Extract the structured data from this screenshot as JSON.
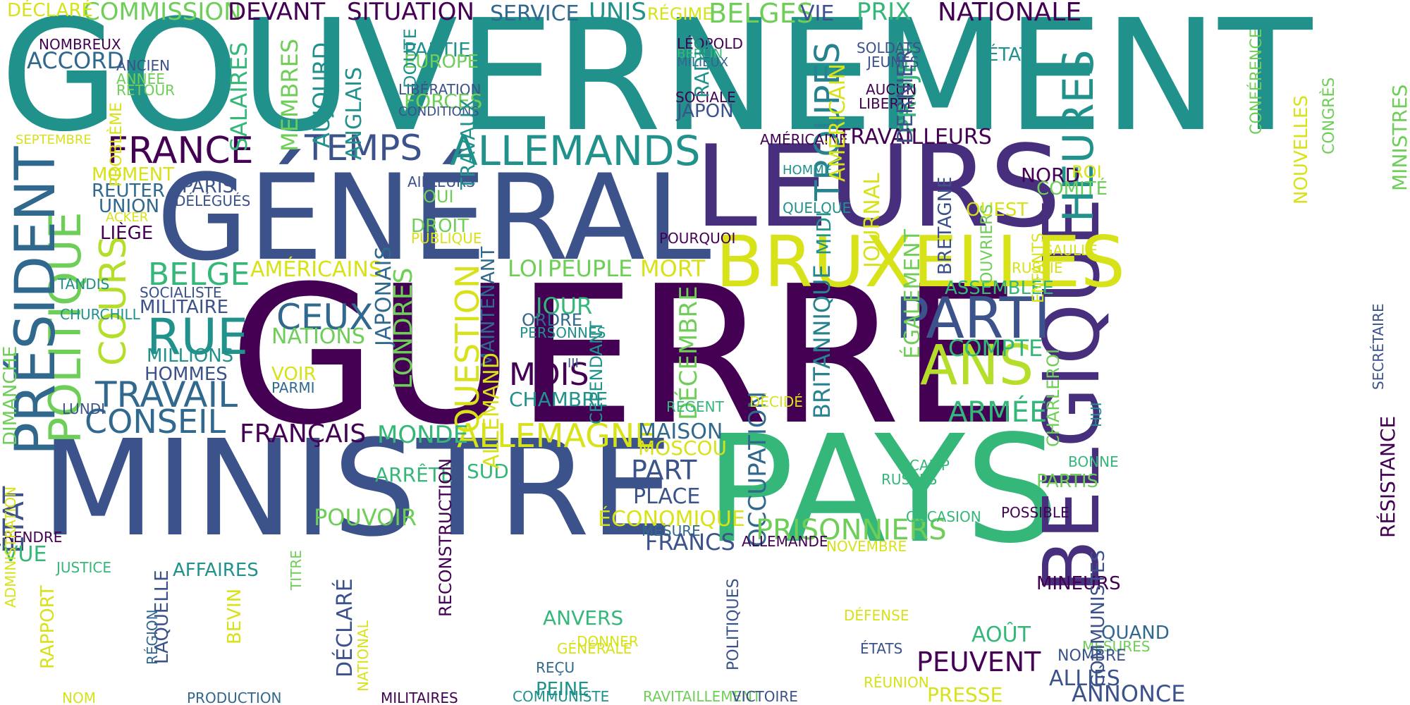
{
  "colors": {
    "purple": "#472f7d",
    "dark_purple": "#440154",
    "indigo": "#3b528b",
    "blue": "#31688e",
    "teal": "#21918c",
    "cyan_teal": "#26828e",
    "green": "#35b779",
    "light_green": "#6ece58",
    "lime": "#b5de2b",
    "yellow": "#d8e219"
  },
  "words": [
    {
      "text": "GOUVERNEMENT",
      "c": "teal"
    },
    {
      "text": "GÉNÉRAL",
      "c": "indigo"
    },
    {
      "text": "GUERRE",
      "c": "dark_purple"
    },
    {
      "text": "MINISTRE",
      "c": "indigo"
    },
    {
      "text": "LEURS",
      "c": "purple"
    },
    {
      "text": "PAYS",
      "c": "green"
    },
    {
      "text": "BELGIQUE",
      "c": "purple"
    },
    {
      "text": "BRUXELLES",
      "c": "yellow"
    },
    {
      "text": "PARTI",
      "c": "indigo"
    },
    {
      "text": "ANS",
      "c": "lime"
    },
    {
      "text": "POLITIQUE",
      "c": "light_green"
    },
    {
      "text": "PRÉSIDENT",
      "c": "blue"
    },
    {
      "text": "ALLEMANDS",
      "c": "teal"
    },
    {
      "text": "TEMPS",
      "c": "indigo"
    },
    {
      "text": "FRANCE",
      "c": "dark_purple"
    },
    {
      "text": "COURS",
      "c": "lime"
    },
    {
      "text": "RUE",
      "c": "teal"
    },
    {
      "text": "TRAVAIL",
      "c": "blue"
    },
    {
      "text": "CONSEIL",
      "c": "blue"
    },
    {
      "text": "BELGE",
      "c": "green"
    },
    {
      "text": "CEUX",
      "c": "blue"
    },
    {
      "text": "MOIS",
      "c": "dark_purple"
    },
    {
      "text": "QUESTION",
      "c": "yellow"
    },
    {
      "text": "LONDRES",
      "c": "light_green"
    },
    {
      "text": "ALLEMAGNE",
      "c": "yellow"
    },
    {
      "text": "FRANÇAIS",
      "c": "dark_purple"
    },
    {
      "text": "HEURES",
      "c": "teal"
    },
    {
      "text": "TROUPES",
      "c": "cyan_teal"
    },
    {
      "text": "PROJET",
      "c": "green"
    },
    {
      "text": "ÉTAT",
      "c": "indigo"
    },
    {
      "text": "ARMÉE",
      "c": "green"
    },
    {
      "text": "COMPTE",
      "c": "green"
    },
    {
      "text": "ASSEMBLÉE",
      "c": "green"
    },
    {
      "text": "OCCUPATION",
      "c": "blue"
    },
    {
      "text": "BRITANNIQUE",
      "c": "cyan_teal"
    },
    {
      "text": "DÉCEMBRE",
      "c": "light_green"
    },
    {
      "text": "CEPENDANT",
      "c": "teal"
    },
    {
      "text": "PRISONNIERS",
      "c": "light_green"
    },
    {
      "text": "FRANCS",
      "c": "indigo"
    },
    {
      "text": "MAISON",
      "c": "blue"
    },
    {
      "text": "MOSCOU",
      "c": "yellow"
    },
    {
      "text": "PART",
      "c": "indigo"
    },
    {
      "text": "PLACE",
      "c": "indigo"
    },
    {
      "text": "ÉCONOMIQUE",
      "c": "yellow"
    },
    {
      "text": "LOI",
      "c": "light_green"
    },
    {
      "text": "PEUPLE",
      "c": "light_green"
    },
    {
      "text": "MORT",
      "c": "yellow"
    },
    {
      "text": "AMÉRICAINS",
      "c": "yellow"
    },
    {
      "text": "MONDE",
      "c": "green"
    },
    {
      "text": "SUD",
      "c": "green"
    },
    {
      "text": "ARRÊTÉ",
      "c": "green"
    },
    {
      "text": "POUVOIR",
      "c": "light_green"
    },
    {
      "text": "JOUR",
      "c": "green"
    },
    {
      "text": "ORDRE",
      "c": "blue"
    },
    {
      "text": "NATIONS",
      "c": "light_green"
    },
    {
      "text": "CHAMBRE",
      "c": "teal"
    },
    {
      "text": "COMMISSION",
      "c": "light_green"
    },
    {
      "text": "DÉCLARÉ",
      "c": "yellow"
    },
    {
      "text": "DEVANT",
      "c": "dark_purple"
    },
    {
      "text": "SITUATION",
      "c": "dark_purple"
    },
    {
      "text": "SERVICE",
      "c": "blue"
    },
    {
      "text": "UNIS",
      "c": "teal"
    },
    {
      "text": "RÉGIME",
      "c": "yellow"
    },
    {
      "text": "BELGES",
      "c": "light_green"
    },
    {
      "text": "VIE",
      "c": "indigo"
    },
    {
      "text": "PRIX",
      "c": "green"
    },
    {
      "text": "NATIONALE",
      "c": "dark_purple"
    },
    {
      "text": "NOMBREUX",
      "c": "dark_purple"
    },
    {
      "text": "ACCORD",
      "c": "blue"
    },
    {
      "text": "ANCIEN",
      "c": "indigo"
    },
    {
      "text": "ANNÉE",
      "c": "light_green"
    },
    {
      "text": "RETOUR",
      "c": "light_green"
    },
    {
      "text": "PARTIE",
      "c": "teal"
    },
    {
      "text": "EUROPE",
      "c": "light_green"
    },
    {
      "text": "LIBÉRATION",
      "c": "indigo"
    },
    {
      "text": "FORCES",
      "c": "light_green"
    },
    {
      "text": "CONDITIONS",
      "c": "indigo"
    },
    {
      "text": "LÉOPOLD",
      "c": "dark_purple"
    },
    {
      "text": "BERLIN",
      "c": "green"
    },
    {
      "text": "MILIEUX",
      "c": "blue"
    },
    {
      "text": "SOCIALE",
      "c": "dark_purple"
    },
    {
      "text": "JAPON",
      "c": "indigo"
    },
    {
      "text": "SOLDATS",
      "c": "indigo"
    },
    {
      "text": "JEUNES",
      "c": "indigo"
    },
    {
      "text": "AUCUN",
      "c": "dark_purple"
    },
    {
      "text": "LIBERTÉ",
      "c": "dark_purple"
    },
    {
      "text": "ÉTAT",
      "c": "teal"
    },
    {
      "text": "SEPTEMBRE",
      "c": "yellow"
    },
    {
      "text": "MOMENT",
      "c": "yellow"
    },
    {
      "text": "REUTER",
      "c": "blue"
    },
    {
      "text": "UNION",
      "c": "blue"
    },
    {
      "text": "ACKER",
      "c": "yellow"
    },
    {
      "text": "LIÈGE",
      "c": "dark_purple"
    },
    {
      "text": "PARIS",
      "c": "indigo"
    },
    {
      "text": "DÉLÉGUÉS",
      "c": "indigo"
    },
    {
      "text": "AILLEURS",
      "c": "indigo"
    },
    {
      "text": "OUI",
      "c": "light_green"
    },
    {
      "text": "DROIT",
      "c": "light_green"
    },
    {
      "text": "PUBLIQUE",
      "c": "yellow"
    },
    {
      "text": "TRAVAILLEURS",
      "c": "dark_purple"
    },
    {
      "text": "AMÉRICAINE",
      "c": "dark_purple"
    },
    {
      "text": "HOMME",
      "c": "teal"
    },
    {
      "text": "QUELQUE",
      "c": "teal"
    },
    {
      "text": "NORD",
      "c": "dark_purple"
    },
    {
      "text": "ROI",
      "c": "yellow"
    },
    {
      "text": "COMITÉ",
      "c": "light_green"
    },
    {
      "text": "OUEST",
      "c": "yellow"
    },
    {
      "text": "GAULLE",
      "c": "yellow"
    },
    {
      "text": "RUSSIE",
      "c": "yellow"
    },
    {
      "text": "POURQUOI",
      "c": "dark_purple"
    },
    {
      "text": "TANDIS",
      "c": "teal"
    },
    {
      "text": "SOCIALISTE",
      "c": "indigo"
    },
    {
      "text": "MILITAIRE",
      "c": "indigo"
    },
    {
      "text": "CHURCHILL",
      "c": "teal"
    },
    {
      "text": "MILLIONS",
      "c": "teal"
    },
    {
      "text": "HOMMES",
      "c": "indigo"
    },
    {
      "text": "LUNDI",
      "c": "indigo"
    },
    {
      "text": "VOIR",
      "c": "yellow"
    },
    {
      "text": "PARMI",
      "c": "blue"
    },
    {
      "text": "PERSONNES",
      "c": "teal"
    },
    {
      "text": "III",
      "c": "indigo"
    },
    {
      "text": "RÉGENT",
      "c": "green"
    },
    {
      "text": "DÉCIDÉ",
      "c": "yellow"
    },
    {
      "text": "CAMP",
      "c": "green"
    },
    {
      "text": "RUSSES",
      "c": "green"
    },
    {
      "text": "BONNE",
      "c": "green"
    },
    {
      "text": "PARTIS",
      "c": "light_green"
    },
    {
      "text": "POSSIBLE",
      "c": "dark_purple"
    },
    {
      "text": "OCCASION",
      "c": "green"
    },
    {
      "text": "MESURE",
      "c": "blue"
    },
    {
      "text": "ALLEMANDE",
      "c": "dark_purple"
    },
    {
      "text": "NOVEMBRE",
      "c": "yellow"
    },
    {
      "text": "RENDRE",
      "c": "dark_purple"
    },
    {
      "text": "VUE",
      "c": "green"
    },
    {
      "text": "JUSTICE",
      "c": "green"
    },
    {
      "text": "AFFAIRES",
      "c": "teal"
    },
    {
      "text": "MINEURS",
      "c": "dark_purple"
    },
    {
      "text": "AOÛT",
      "c": "green"
    },
    {
      "text": "MESURES",
      "c": "light_green"
    },
    {
      "text": "QUAND",
      "c": "blue"
    },
    {
      "text": "NOMBRE",
      "c": "indigo"
    },
    {
      "text": "PEUVENT",
      "c": "dark_purple"
    },
    {
      "text": "ALLIÉS",
      "c": "indigo"
    },
    {
      "text": "PRESSE",
      "c": "yellow"
    },
    {
      "text": "ANNONCE",
      "c": "indigo"
    },
    {
      "text": "ÉTATS",
      "c": "indigo"
    },
    {
      "text": "RÉUNION",
      "c": "yellow"
    },
    {
      "text": "DÉFENSE",
      "c": "yellow"
    },
    {
      "text": "ANVERS",
      "c": "green"
    },
    {
      "text": "GÉNÉRALE",
      "c": "yellow"
    },
    {
      "text": "DONNER",
      "c": "yellow"
    },
    {
      "text": "REÇU",
      "c": "blue"
    },
    {
      "text": "PEINE",
      "c": "teal"
    },
    {
      "text": "NOM",
      "c": "yellow"
    },
    {
      "text": "PRODUCTION",
      "c": "blue"
    },
    {
      "text": "MILITAIRES",
      "c": "dark_purple"
    },
    {
      "text": "COMMUNISTE",
      "c": "teal"
    },
    {
      "text": "RAVITAILLEMENT",
      "c": "light_green"
    },
    {
      "text": "VICTOIRE",
      "c": "indigo"
    },
    {
      "text": "DOUTE",
      "c": "teal"
    },
    {
      "text": "PROBLÈME",
      "c": "yellow"
    },
    {
      "text": "SALAIRES",
      "c": "green"
    },
    {
      "text": "MEMBRES",
      "c": "light_green"
    },
    {
      "text": "AUJOURD",
      "c": "teal"
    },
    {
      "text": "ANGLAIS",
      "c": "teal"
    },
    {
      "text": "TRAVAUX",
      "c": "teal"
    },
    {
      "text": "RADIO",
      "c": "teal"
    },
    {
      "text": "AMÉRICAIN",
      "c": "yellow"
    },
    {
      "text": "DERNIER",
      "c": "indigo"
    },
    {
      "text": "CONFÉRENCE",
      "c": "light_green"
    },
    {
      "text": "NOUVELLES",
      "c": "yellow"
    },
    {
      "text": "CONGRÈS",
      "c": "light_green"
    },
    {
      "text": "MINISTRES",
      "c": "light_green"
    },
    {
      "text": "DIMANCHE",
      "c": "light_green"
    },
    {
      "text": "JAPONAIS",
      "c": "blue"
    },
    {
      "text": "MAINTENANT",
      "c": "blue"
    },
    {
      "text": "MIDI",
      "c": "teal"
    },
    {
      "text": "JOURNAL",
      "c": "yellow"
    },
    {
      "text": "ÉGALEMENT",
      "c": "light_green"
    },
    {
      "text": "BRETAGNE",
      "c": "indigo"
    },
    {
      "text": "OUVRIERS",
      "c": "light_green"
    },
    {
      "text": "ENFANTS",
      "c": "yellow"
    },
    {
      "text": "SECRÉTAIRE",
      "c": "indigo"
    },
    {
      "text": "RÉSISTANCE",
      "c": "dark_purple"
    },
    {
      "text": "ALLEMAND",
      "c": "yellow"
    },
    {
      "text": "RECONSTRUCTION",
      "c": "dark_purple"
    },
    {
      "text": "CHARLEROI",
      "c": "light_green"
    },
    {
      "text": "HUI",
      "c": "teal"
    },
    {
      "text": "COMMUNISTES",
      "c": "indigo"
    },
    {
      "text": "ADMINISTRATION",
      "c": "yellow"
    },
    {
      "text": "RAPPORT",
      "c": "yellow"
    },
    {
      "text": "TITRE",
      "c": "light_green"
    },
    {
      "text": "LAQUELLE",
      "c": "indigo"
    },
    {
      "text": "RÉGION",
      "c": "blue"
    },
    {
      "text": "BEVIN",
      "c": "yellow"
    },
    {
      "text": "DÉCLARÉ",
      "c": "indigo"
    },
    {
      "text": "NATIONAL",
      "c": "yellow"
    },
    {
      "text": "POLITIQUES",
      "c": "indigo"
    },
    {
      "text": "MINISTÈRE",
      "c": "yellow"
    },
    {
      "text": "AUTORITÉS",
      "c": "dark_purple"
    }
  ]
}
